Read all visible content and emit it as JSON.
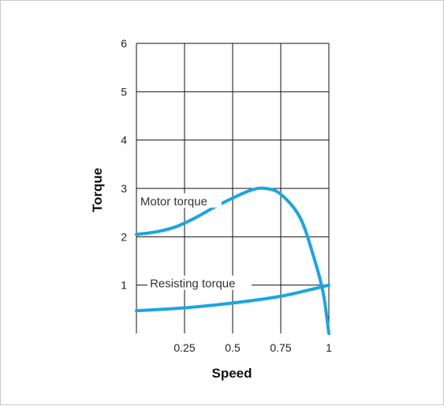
{
  "chart_data": {
    "type": "line",
    "title": "",
    "xlabel": "Speed",
    "ylabel": "Torque",
    "xlim": [
      0,
      1
    ],
    "ylim": [
      0,
      6
    ],
    "x_ticks": [
      "0.25",
      "0.5",
      "0.75",
      "1"
    ],
    "y_ticks": [
      "1",
      "2",
      "3",
      "4",
      "5",
      "6"
    ],
    "grid": true,
    "line_color": "#1aa6e0",
    "series": [
      {
        "name": "Motor torque",
        "x": [
          0,
          0.1,
          0.2,
          0.3,
          0.4,
          0.5,
          0.6,
          0.67,
          0.75,
          0.85,
          0.92,
          0.97,
          1.0
        ],
        "y": [
          2.05,
          2.1,
          2.2,
          2.38,
          2.6,
          2.8,
          2.97,
          3.0,
          2.88,
          2.4,
          1.6,
          0.85,
          0.0
        ]
      },
      {
        "name": "Resisting torque",
        "x": [
          0,
          0.25,
          0.5,
          0.75,
          1.0
        ],
        "y": [
          0.47,
          0.53,
          0.63,
          0.77,
          1.0
        ]
      }
    ]
  }
}
